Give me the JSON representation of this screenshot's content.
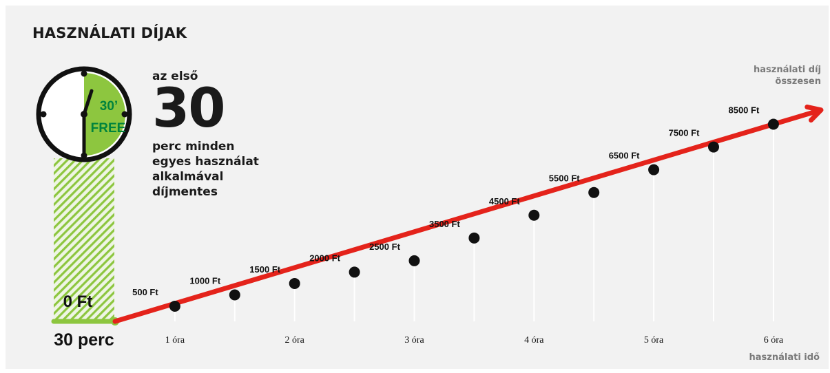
{
  "title": "HASZNÁLATI DÍJAK",
  "intro": {
    "line1": "az első",
    "number": "30",
    "description": "perc minden egyes használat alkalmával díjmentes"
  },
  "clock": {
    "badge_line1": "30’",
    "badge_line2": "FREE"
  },
  "free_label": "0 Ft",
  "free_time_label": "30 perc",
  "x_axis_title": "használati idő",
  "y_axis_title_line1": "használati díj",
  "y_axis_title_line2": "összesen",
  "colors": {
    "line": "#e4231b",
    "free_green": "#8dc63f",
    "free_green_dark": "#00843d",
    "point": "#111111"
  },
  "chart_data": {
    "type": "line",
    "xlabel": "használati idő",
    "ylabel": "használati díj összesen",
    "tick_labels": [
      "1 óra",
      "2 óra",
      "3 óra",
      "4 óra",
      "5 óra",
      "6 óra"
    ],
    "tick_values": [
      1,
      2,
      3,
      4,
      5,
      6
    ],
    "x_unit": "óra",
    "free_period": {
      "x": 0.5,
      "y": 0,
      "label": "0 Ft",
      "time_label": "30 perc"
    },
    "points": [
      {
        "x": 1.0,
        "y": 500,
        "label": "500 Ft"
      },
      {
        "x": 1.5,
        "y": 1000,
        "label": "1000 Ft"
      },
      {
        "x": 2.0,
        "y": 1500,
        "label": "1500 Ft"
      },
      {
        "x": 2.5,
        "y": 2000,
        "label": "2000 Ft"
      },
      {
        "x": 3.0,
        "y": 2500,
        "label": "2500 Ft"
      },
      {
        "x": 3.5,
        "y": 3500,
        "label": "3500 Ft"
      },
      {
        "x": 4.0,
        "y": 4500,
        "label": "4500 Ft"
      },
      {
        "x": 4.5,
        "y": 5500,
        "label": "5500 Ft"
      },
      {
        "x": 5.0,
        "y": 6500,
        "label": "6500 Ft"
      },
      {
        "x": 5.5,
        "y": 7500,
        "label": "7500 Ft"
      },
      {
        "x": 6.0,
        "y": 8500,
        "label": "8500 Ft"
      }
    ]
  }
}
